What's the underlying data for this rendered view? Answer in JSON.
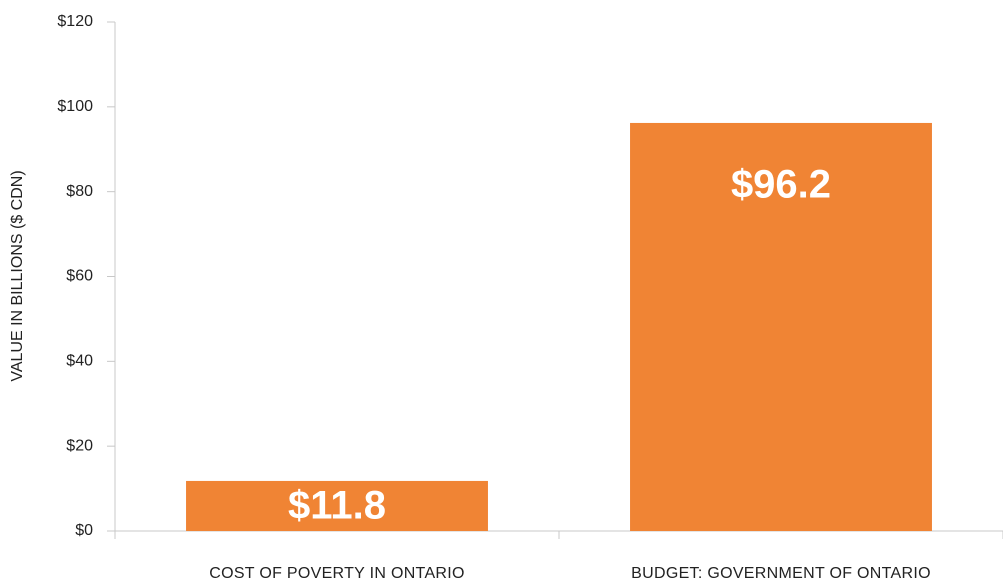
{
  "chart_data": {
    "type": "bar",
    "categories": [
      "COST OF POVERTY IN ONTARIO",
      "BUDGET: GOVERNMENT OF ONTARIO"
    ],
    "values": [
      11.8,
      96.2
    ],
    "value_labels": [
      "$11.8",
      "$96.2"
    ],
    "color": "#f08434",
    "ylabel": "VALUE IN BILLIONS ($ CDN)",
    "ylim": [
      0,
      120
    ],
    "yticks": [
      {
        "value": 0,
        "label": "$0"
      },
      {
        "value": 20,
        "label": "$20"
      },
      {
        "value": 40,
        "label": "$40"
      },
      {
        "value": 60,
        "label": "$60"
      },
      {
        "value": 80,
        "label": "$80"
      },
      {
        "value": 100,
        "label": "$100"
      },
      {
        "value": 120,
        "label": "$120"
      }
    ],
    "grid": false
  }
}
